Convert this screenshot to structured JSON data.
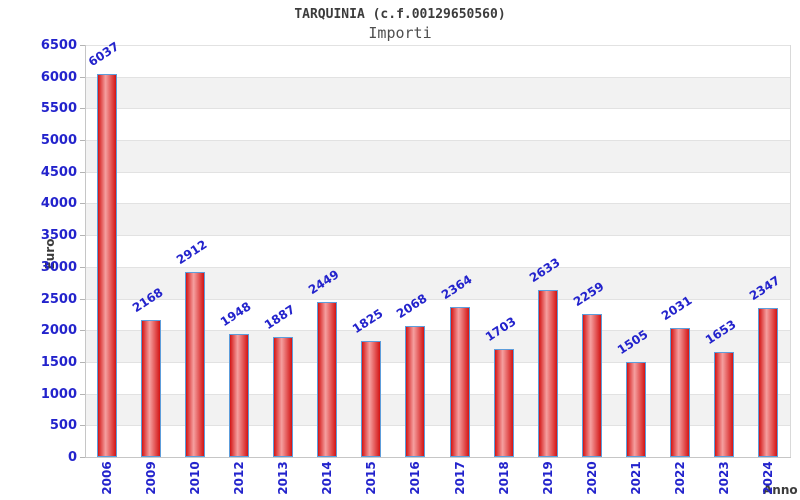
{
  "header": {
    "title": "TARQUINIA (c.f.00129650560)",
    "subtitle": "Importi"
  },
  "colors": {
    "label_blue": "#2323cc",
    "bar_edge_red": "#d31414",
    "bar_center_light": "#f5a0a0",
    "bar_border_blue": "#5d9ddb",
    "band_gray": "#f2f2f2",
    "band_white": "#ffffff",
    "gridline": "#e2e2e2",
    "axis_gray": "#c6c6c6",
    "title_text": "#3c3c3c"
  },
  "chart_data": {
    "type": "bar",
    "title": "TARQUINIA (c.f.00129650560)",
    "subtitle": "Importi",
    "xlabel": "Anno",
    "ylabel": "Euro",
    "categories": [
      "2006",
      "2009",
      "2010",
      "2012",
      "2013",
      "2014",
      "2015",
      "2016",
      "2017",
      "2018",
      "2019",
      "2020",
      "2021",
      "2022",
      "2023",
      "2024"
    ],
    "values": [
      6037,
      2168,
      2912,
      1948,
      1887,
      2449,
      1825,
      2068,
      2364,
      1703,
      2633,
      2259,
      1505,
      2031,
      1653,
      2347
    ],
    "ylim": [
      0,
      6500
    ],
    "ytick_step": 500,
    "yticks": [
      0,
      500,
      1000,
      1500,
      2000,
      2500,
      3000,
      3500,
      4000,
      4500,
      5000,
      5500,
      6000,
      6500
    ],
    "grid": "horizontal gridlines with alternating white/gray bands",
    "legend": "none",
    "value_labels": "above bars, rotated, blue",
    "category_labels": "vertical, blue"
  }
}
